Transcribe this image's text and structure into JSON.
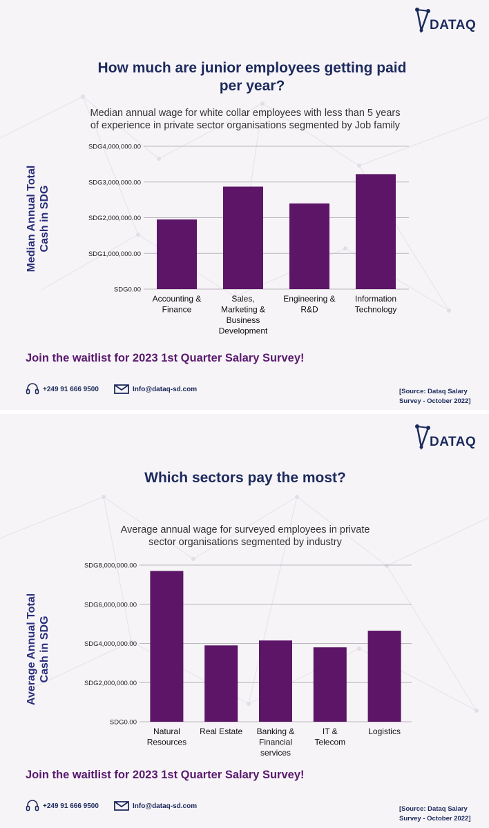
{
  "colors": {
    "bar": "#5c1567",
    "title": "#1c2a5c",
    "cta": "#5a1a6e"
  },
  "logo": {
    "text": "DATAQ",
    "icon": "dataq-logo-icon"
  },
  "panels": [
    {
      "title_line1": "How much are junior employees getting paid",
      "title_line2": "per year?",
      "subtitle_line1": "Median annual wage for white collar employees with less than 5 years",
      "subtitle_line2": "of experience in private sector organisations segmented by Job family",
      "ylabel_line1": "Median Annual Total",
      "ylabel_line2": "Cash in SDG",
      "cta": "Join the waitlist for 2023 1st Quarter Salary Survey!",
      "phone": "+249 91 666 9500",
      "email": "Info@dataq-sd.com",
      "source_line1": "[Source: Dataq Salary",
      "source_line2": "Survey - October 2022]"
    },
    {
      "title_line1": "Which sectors pay the most?",
      "subtitle_line1": "Average annual wage for surveyed employees in private",
      "subtitle_line2": "sector organisations segmented by industry",
      "ylabel_line1": "Average Annual Total",
      "ylabel_line2": "Cash in SDG",
      "cta": "Join the waitlist for 2023 1st Quarter Salary Survey!",
      "phone": "+249 91 666 9500",
      "email": "Info@dataq-sd.com",
      "source_line1": "[Source: Dataq Salary",
      "source_line2": "Survey - October 2022]"
    }
  ],
  "chart_data": [
    {
      "type": "bar",
      "title": "How much are junior employees getting paid per year?",
      "ylabel": "Median Annual Total Cash in SDG",
      "categories": [
        [
          "Accounting &",
          "Finance"
        ],
        [
          "Sales,",
          "Marketing &",
          "Business",
          "Development"
        ],
        [
          "Engineering &",
          "R&D"
        ],
        [
          "Information",
          "Technology"
        ]
      ],
      "values": [
        1950000,
        2870000,
        2400000,
        3220000
      ],
      "ylim": [
        0,
        4000000
      ],
      "ticks": [
        0,
        1000000,
        2000000,
        3000000,
        4000000
      ],
      "tick_labels": [
        "SDG0.00",
        "SDG1,000,000.00",
        "SDG2,000,000.00",
        "SDG3,000,000.00",
        "SDG4,000,000.00"
      ],
      "grid": true
    },
    {
      "type": "bar",
      "title": "Which sectors pay the most?",
      "ylabel": "Average Annual Total Cash in SDG",
      "categories": [
        [
          "Natural",
          "Resources"
        ],
        [
          "Real Estate"
        ],
        [
          "Banking &",
          "Financial",
          "services"
        ],
        [
          "IT &",
          "Telecom"
        ],
        [
          "Logistics"
        ]
      ],
      "values": [
        7700000,
        3900000,
        4150000,
        3800000,
        4650000
      ],
      "ylim": [
        0,
        8000000
      ],
      "ticks": [
        0,
        2000000,
        4000000,
        6000000,
        8000000
      ],
      "tick_labels": [
        "SDG0.00",
        "SDG2,000,000.00",
        "SDG4,000,000.00",
        "SDG6,000,000.00",
        "SDG8,000,000.00"
      ],
      "grid": true
    }
  ]
}
